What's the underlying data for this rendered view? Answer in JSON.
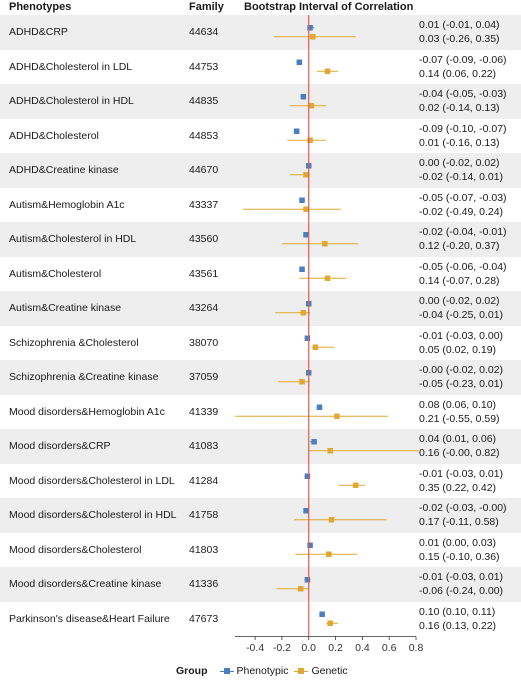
{
  "headers": {
    "phenotypes": "Phenotypes",
    "family": "Family",
    "bootstrap": "Bootstrap Interval of Correlation"
  },
  "legend": {
    "title": "Group",
    "phenotypic": "Phenotypic",
    "genetic": "Genetic"
  },
  "colors": {
    "phenotypic": "#4a7fbf",
    "genetic": "#e0a832",
    "zero_line": "#e05a4f",
    "shade": "#eeeeee"
  },
  "chart_data": {
    "type": "forest",
    "title": "",
    "xlabel": "",
    "ylabel": "",
    "xlim": [
      -0.55,
      0.8
    ],
    "xticks": [
      -0.4,
      -0.2,
      0.0,
      0.2,
      0.4,
      0.6,
      0.8
    ],
    "xtick_labels": [
      "-0.4",
      "-0.2",
      "0.0",
      "0.2",
      "0.4",
      "0.6",
      "0.8"
    ],
    "reference_line": 0,
    "legend_position": "bottom",
    "rows": [
      {
        "phenotype": "ADHD&CRP",
        "family": "44634",
        "phenotypic": {
          "est": 0.01,
          "lo": -0.01,
          "hi": 0.04,
          "label": "0.01 (-0.01, 0.04)"
        },
        "genetic": {
          "est": 0.03,
          "lo": -0.26,
          "hi": 0.35,
          "label": "0.03 (-0.26, 0.35)"
        }
      },
      {
        "phenotype": "ADHD&Cholesterol in LDL",
        "family": "44753",
        "phenotypic": {
          "est": -0.07,
          "lo": -0.09,
          "hi": -0.06,
          "label": "-0.07 (-0.09, -0.06)"
        },
        "genetic": {
          "est": 0.14,
          "lo": 0.06,
          "hi": 0.22,
          "label": "0.14 (0.06, 0.22)"
        }
      },
      {
        "phenotype": "ADHD&Cholesterol in HDL",
        "family": "44835",
        "phenotypic": {
          "est": -0.04,
          "lo": -0.05,
          "hi": -0.03,
          "label": "-0.04 (-0.05, -0.03)"
        },
        "genetic": {
          "est": 0.02,
          "lo": -0.14,
          "hi": 0.13,
          "label": "0.02 (-0.14, 0.13)"
        }
      },
      {
        "phenotype": "ADHD&Cholesterol",
        "family": "44853",
        "phenotypic": {
          "est": -0.09,
          "lo": -0.1,
          "hi": -0.07,
          "label": "-0.09 (-0.10, -0.07)"
        },
        "genetic": {
          "est": 0.01,
          "lo": -0.16,
          "hi": 0.13,
          "label": "0.01 (-0.16, 0.13)"
        }
      },
      {
        "phenotype": "ADHD&Creatine kinase",
        "family": "44670",
        "phenotypic": {
          "est": 0.0,
          "lo": -0.02,
          "hi": 0.02,
          "label": "0.00 (-0.02, 0.02)"
        },
        "genetic": {
          "est": -0.02,
          "lo": -0.14,
          "hi": 0.01,
          "label": "-0.02 (-0.14, 0.01)"
        }
      },
      {
        "phenotype": "Autism&Hemoglobin A1c",
        "family": "43337",
        "phenotypic": {
          "est": -0.05,
          "lo": -0.07,
          "hi": -0.03,
          "label": "-0.05 (-0.07, -0.03)"
        },
        "genetic": {
          "est": -0.02,
          "lo": -0.49,
          "hi": 0.24,
          "label": "-0.02 (-0.49, 0.24)"
        }
      },
      {
        "phenotype": "Autism&Cholesterol in HDL",
        "family": "43560",
        "phenotypic": {
          "est": -0.02,
          "lo": -0.04,
          "hi": -0.01,
          "label": "-0.02 (-0.04, -0.01)"
        },
        "genetic": {
          "est": 0.12,
          "lo": -0.2,
          "hi": 0.37,
          "label": "0.12 (-0.20, 0.37)"
        }
      },
      {
        "phenotype": "Autism&Cholesterol",
        "family": "43561",
        "phenotypic": {
          "est": -0.05,
          "lo": -0.06,
          "hi": -0.04,
          "label": "-0.05 (-0.06, -0.04)"
        },
        "genetic": {
          "est": 0.14,
          "lo": -0.07,
          "hi": 0.28,
          "label": "0.14 (-0.07, 0.28)"
        }
      },
      {
        "phenotype": "Autism&Creatine kinase",
        "family": "43264",
        "phenotypic": {
          "est": 0.0,
          "lo": -0.02,
          "hi": 0.02,
          "label": "0.00 (-0.02, 0.02)"
        },
        "genetic": {
          "est": -0.04,
          "lo": -0.25,
          "hi": 0.01,
          "label": "-0.04 (-0.25, 0.01)"
        }
      },
      {
        "phenotype": "Schizophrenia &Cholesterol",
        "family": "38070",
        "phenotypic": {
          "est": -0.01,
          "lo": -0.03,
          "hi": 0.0,
          "label": "-0.01 (-0.03, 0.00)"
        },
        "genetic": {
          "est": 0.05,
          "lo": 0.02,
          "hi": 0.19,
          "label": "0.05 (0.02, 0.19)"
        }
      },
      {
        "phenotype": "Schizophrenia &Creatine kinase",
        "family": "37059",
        "phenotypic": {
          "est": -0.0,
          "lo": -0.02,
          "hi": 0.02,
          "label": "-0.00 (-0.02, 0.02)"
        },
        "genetic": {
          "est": -0.05,
          "lo": -0.23,
          "hi": 0.01,
          "label": "-0.05 (-0.23, 0.01)"
        }
      },
      {
        "phenotype": "Mood disorders&Hemoglobin A1c",
        "family": "41339",
        "phenotypic": {
          "est": 0.08,
          "lo": 0.06,
          "hi": 0.1,
          "label": "0.08 (0.06, 0.10)"
        },
        "genetic": {
          "est": 0.21,
          "lo": -0.55,
          "hi": 0.59,
          "label": "0.21 (-0.55, 0.59)"
        }
      },
      {
        "phenotype": "Mood disorders&CRP",
        "family": "41083",
        "phenotypic": {
          "est": 0.04,
          "lo": 0.01,
          "hi": 0.06,
          "label": "0.04 (0.01, 0.06)"
        },
        "genetic": {
          "est": 0.16,
          "lo": -0.0,
          "hi": 0.82,
          "label": "0.16 (-0.00, 0.82)"
        }
      },
      {
        "phenotype": "Mood disorders&Cholesterol in LDL",
        "family": "41284",
        "phenotypic": {
          "est": -0.01,
          "lo": -0.03,
          "hi": 0.01,
          "label": "-0.01 (-0.03, 0.01)"
        },
        "genetic": {
          "est": 0.35,
          "lo": 0.22,
          "hi": 0.42,
          "label": "0.35 (0.22, 0.42)"
        }
      },
      {
        "phenotype": "Mood disorders&Cholesterol in HDL",
        "family": "41758",
        "phenotypic": {
          "est": -0.02,
          "lo": -0.03,
          "hi": -0.0,
          "label": "-0.02 (-0.03, -0.00)"
        },
        "genetic": {
          "est": 0.17,
          "lo": -0.11,
          "hi": 0.58,
          "label": "0.17 (-0.11, 0.58)"
        }
      },
      {
        "phenotype": "Mood disorders&Cholesterol",
        "family": "41803",
        "phenotypic": {
          "est": 0.01,
          "lo": 0.0,
          "hi": 0.03,
          "label": "0.01 (0.00, 0.03)"
        },
        "genetic": {
          "est": 0.15,
          "lo": -0.1,
          "hi": 0.36,
          "label": "0.15 (-0.10, 0.36)"
        }
      },
      {
        "phenotype": "Mood disorders&Creatine kinase",
        "family": "41336",
        "phenotypic": {
          "est": -0.01,
          "lo": -0.03,
          "hi": 0.01,
          "label": "-0.01 (-0.03, 0.01)"
        },
        "genetic": {
          "est": -0.06,
          "lo": -0.24,
          "hi": 0.0,
          "label": "-0.06 (-0.24, 0.00)"
        }
      },
      {
        "phenotype": "Parkinson's disease&Heart Failure",
        "family": "47673",
        "phenotypic": {
          "est": 0.1,
          "lo": 0.1,
          "hi": 0.11,
          "label": "0.10 (0.10, 0.11)"
        },
        "genetic": {
          "est": 0.16,
          "lo": 0.13,
          "hi": 0.22,
          "label": "0.16 (0.13, 0.22)"
        }
      }
    ]
  }
}
